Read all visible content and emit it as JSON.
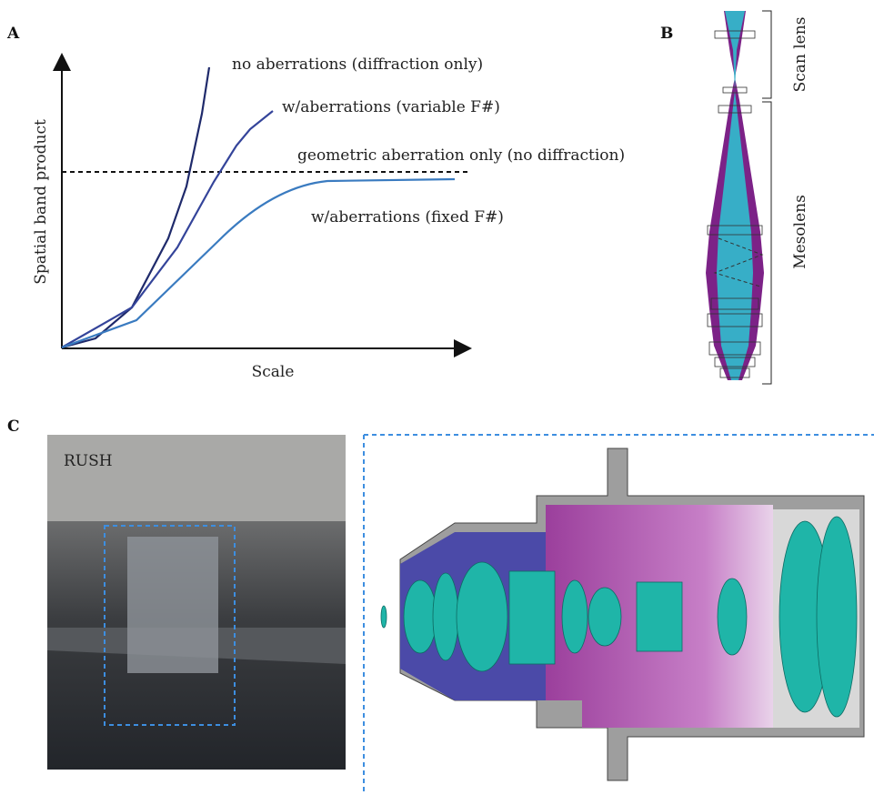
{
  "panels": {
    "a": {
      "label": "A",
      "y_axis_label": "Spatial band product",
      "x_axis_label": "Scale",
      "curves": [
        "no aberrations (diffraction only)",
        "w/aberrations (variable F#)",
        "geometric aberration only (no diffraction)",
        "w/aberrations (fixed F#)"
      ]
    },
    "b": {
      "label": "B",
      "sections": [
        "Scan lens",
        "Mesolens"
      ]
    },
    "c": {
      "label": "C",
      "photo_label": "RUSH"
    }
  }
}
